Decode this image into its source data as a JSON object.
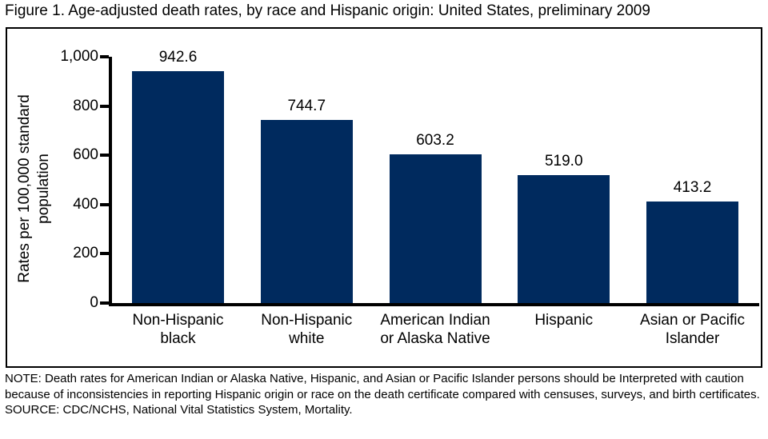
{
  "chart_data": {
    "type": "bar",
    "title": "Figure 1. Age-adjusted death rates, by race and Hispanic origin: United States, preliminary 2009",
    "ylabel": "Rates per 100,000 standard\npopulation",
    "xlabel": "",
    "ylim": [
      0,
      1000
    ],
    "grid": false,
    "legend": null,
    "bar_color": "#002a5e",
    "yticks": [
      {
        "value": 0,
        "label": "0"
      },
      {
        "value": 200,
        "label": "200"
      },
      {
        "value": 400,
        "label": "400"
      },
      {
        "value": 600,
        "label": "600"
      },
      {
        "value": 800,
        "label": "800"
      },
      {
        "value": 1000,
        "label": "1,000"
      }
    ],
    "categories": [
      "Non-Hispanic\nblack",
      "Non-Hispanic\nwhite",
      "American Indian\nor Alaska Native",
      "Hispanic",
      "Asian or Pacific\nIslander"
    ],
    "values": [
      942.6,
      744.7,
      603.2,
      519.0,
      413.2
    ],
    "value_labels": [
      "942.6",
      "744.7",
      "603.2",
      "519.0",
      "413.2"
    ]
  },
  "note": "NOTE: Death rates for American Indian or Alaska Native, Hispanic, and Asian or Pacific Islander persons should be Interpreted with caution because of inconsistencies in reporting Hispanic origin or race on the death certificate compared with censuses, surveys, and birth certificates.",
  "source": "SOURCE: CDC/NCHS, National Vital Statistics System, Mortality."
}
